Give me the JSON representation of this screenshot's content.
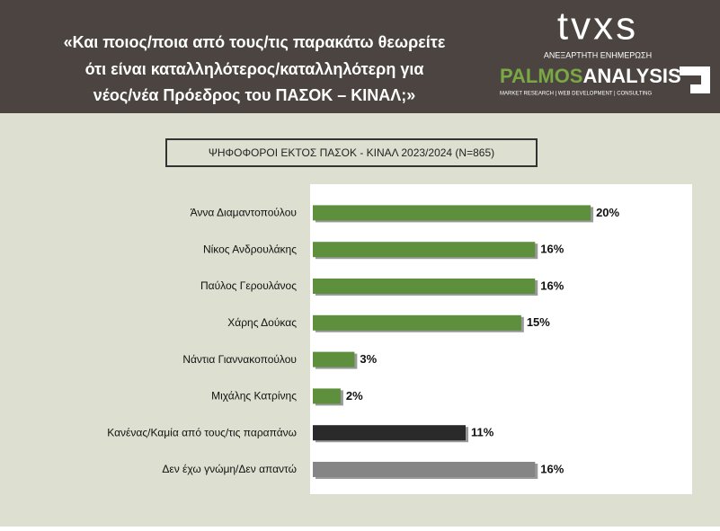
{
  "header": {
    "title_lines": [
      "«Και ποιος/ποια από τους/τις παρακάτω θεωρείτε",
      "ότι είναι καταλληλότερος/καταλληλότερη για",
      "νέος/νέα Πρόεδρος του ΠΑΣΟΚ – ΚΙΝΑΛ;»"
    ],
    "logo_top": "tvxs",
    "logo_tagline": "ΑΝΕΞΑΡΤΗΤΗ ΕΝΗΜΕΡΩΣΗ",
    "logo_brand_a": "PALMOS",
    "logo_brand_b": "ANALYSIS",
    "logo_services": "MARKET RESEARCH | WEB DEVELOPMENT | CONSULTING"
  },
  "chart_data": {
    "type": "bar",
    "orientation": "horizontal",
    "subtitle": "ΨΗΦΟΦΟΡΟΙ ΕΚΤΟΣ ΠΑΣΟΚ - ΚΙΝΑΛ 2023/2024 (N=865)",
    "categories": [
      "Άννα Διαμαντοπούλου",
      "Νίκος Ανδρουλάκης",
      "Παύλος Γερουλάνος",
      "Χάρης Δούκας",
      "Νάντια Γιαννακοπούλου",
      "Μιχάλης Κατρίνης",
      "Κανένας/Καμία από τους/τις παραπάνω",
      "Δεν έχω γνώμη/Δεν απαντώ"
    ],
    "values": [
      20,
      16,
      16,
      15,
      3,
      2,
      11,
      16
    ],
    "value_labels": [
      "20%",
      "16%",
      "16%",
      "15%",
      "3%",
      "2%",
      "11%",
      "16%"
    ],
    "colors": [
      "#5e8f3c",
      "#5e8f3c",
      "#5e8f3c",
      "#5e8f3c",
      "#5e8f3c",
      "#5e8f3c",
      "#2a2a2a",
      "#858585"
    ],
    "xlim": [
      0,
      27.5
    ],
    "grid": false
  }
}
